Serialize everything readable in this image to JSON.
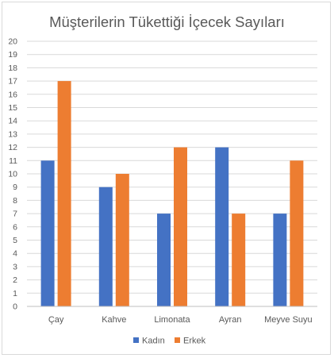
{
  "chart_data": {
    "type": "bar",
    "title": "Müşterilerin Tükettiği İçecek Sayıları",
    "categories": [
      "Çay",
      "Kahve",
      "Limonata",
      "Ayran",
      "Meyve Suyu"
    ],
    "series": [
      {
        "name": "Kadın",
        "color": "#4472c4",
        "values": [
          11,
          9,
          7,
          12,
          7
        ]
      },
      {
        "name": "Erkek",
        "color": "#ed7d31",
        "values": [
          17,
          10,
          12,
          7,
          11
        ]
      }
    ],
    "ylim": [
      0,
      20
    ],
    "ytick_step": 1,
    "grid": true,
    "legend_position": "bottom"
  }
}
